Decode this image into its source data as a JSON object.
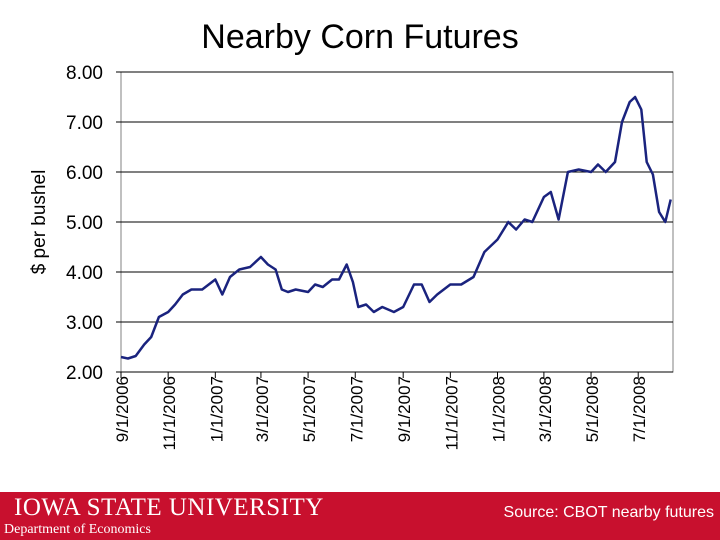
{
  "footer": {
    "logo_text": "IOWA STATE UNIVERSITY",
    "department": "Department of Economics",
    "source": "Source: CBOT nearby futures"
  },
  "colors": {
    "line": "#1a237e",
    "footer_bg": "#c8102e",
    "grid": "#000000"
  },
  "chart_data": {
    "type": "line",
    "title": "Nearby Corn Futures",
    "xlabel": "",
    "ylabel": "$ per bushel",
    "ylim": [
      2.0,
      8.0
    ],
    "yticks": [
      "2.00",
      "3.00",
      "4.00",
      "5.00",
      "6.00",
      "7.00",
      "8.00"
    ],
    "xticks": [
      "9/1/2006",
      "11/1/2006",
      "1/1/2007",
      "3/1/2007",
      "5/1/2007",
      "7/1/2007",
      "9/1/2007",
      "11/1/2007",
      "1/1/2008",
      "3/1/2008",
      "5/1/2008",
      "7/1/2008"
    ],
    "xlim": [
      "2006-09-01",
      "2008-08-15"
    ],
    "grid": "horizontal",
    "series": [
      {
        "points": [
          [
            "2006-09-01",
            2.3
          ],
          [
            "2006-09-10",
            2.27
          ],
          [
            "2006-09-20",
            2.32
          ],
          [
            "2006-10-01",
            2.55
          ],
          [
            "2006-10-10",
            2.7
          ],
          [
            "2006-10-20",
            3.1
          ],
          [
            "2006-11-01",
            3.2
          ],
          [
            "2006-11-10",
            3.35
          ],
          [
            "2006-11-20",
            3.55
          ],
          [
            "2006-12-01",
            3.65
          ],
          [
            "2006-12-15",
            3.65
          ],
          [
            "2007-01-01",
            3.85
          ],
          [
            "2007-01-10",
            3.55
          ],
          [
            "2007-01-20",
            3.9
          ],
          [
            "2007-02-01",
            4.05
          ],
          [
            "2007-02-15",
            4.1
          ],
          [
            "2007-03-01",
            4.3
          ],
          [
            "2007-03-10",
            4.15
          ],
          [
            "2007-03-20",
            4.05
          ],
          [
            "2007-03-28",
            3.65
          ],
          [
            "2007-04-05",
            3.6
          ],
          [
            "2007-04-15",
            3.65
          ],
          [
            "2007-05-01",
            3.6
          ],
          [
            "2007-05-10",
            3.75
          ],
          [
            "2007-05-20",
            3.7
          ],
          [
            "2007-06-01",
            3.85
          ],
          [
            "2007-06-10",
            3.85
          ],
          [
            "2007-06-20",
            4.15
          ],
          [
            "2007-06-28",
            3.8
          ],
          [
            "2007-07-05",
            3.3
          ],
          [
            "2007-07-15",
            3.35
          ],
          [
            "2007-07-25",
            3.2
          ],
          [
            "2007-08-05",
            3.3
          ],
          [
            "2007-08-20",
            3.2
          ],
          [
            "2007-09-01",
            3.3
          ],
          [
            "2007-09-15",
            3.75
          ],
          [
            "2007-09-25",
            3.75
          ],
          [
            "2007-10-05",
            3.4
          ],
          [
            "2007-10-15",
            3.55
          ],
          [
            "2007-11-01",
            3.75
          ],
          [
            "2007-11-15",
            3.75
          ],
          [
            "2007-12-01",
            3.9
          ],
          [
            "2007-12-15",
            4.4
          ],
          [
            "2008-01-01",
            4.65
          ],
          [
            "2008-01-15",
            5.0
          ],
          [
            "2008-01-25",
            4.85
          ],
          [
            "2008-02-05",
            5.05
          ],
          [
            "2008-02-15",
            5.0
          ],
          [
            "2008-03-01",
            5.5
          ],
          [
            "2008-03-10",
            5.6
          ],
          [
            "2008-03-20",
            5.05
          ],
          [
            "2008-04-01",
            6.0
          ],
          [
            "2008-04-15",
            6.05
          ],
          [
            "2008-05-01",
            6.0
          ],
          [
            "2008-05-10",
            6.15
          ],
          [
            "2008-05-20",
            6.0
          ],
          [
            "2008-06-01",
            6.2
          ],
          [
            "2008-06-10",
            7.0
          ],
          [
            "2008-06-20",
            7.4
          ],
          [
            "2008-06-27",
            7.5
          ],
          [
            "2008-07-05",
            7.25
          ],
          [
            "2008-07-12",
            6.2
          ],
          [
            "2008-07-20",
            5.95
          ],
          [
            "2008-07-28",
            5.2
          ],
          [
            "2008-08-05",
            5.0
          ],
          [
            "2008-08-12",
            5.45
          ]
        ]
      }
    ]
  }
}
